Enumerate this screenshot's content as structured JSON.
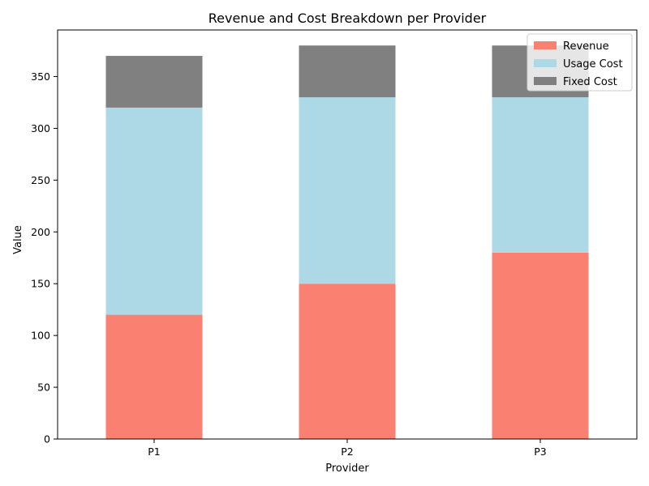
{
  "chart_data": {
    "type": "bar",
    "stacked": true,
    "title": "Revenue and Cost Breakdown per Provider",
    "xlabel": "Provider",
    "ylabel": "Value",
    "categories": [
      "P1",
      "P2",
      "P3"
    ],
    "series": [
      {
        "name": "Revenue",
        "values": [
          120,
          150,
          180
        ],
        "color": "#fa8072"
      },
      {
        "name": "Usage Cost",
        "values": [
          200,
          180,
          150
        ],
        "color": "#add8e6"
      },
      {
        "name": "Fixed Cost",
        "values": [
          50,
          50,
          50
        ],
        "color": "#808080"
      }
    ],
    "ylim": [
      0,
      395
    ],
    "yticks": [
      0,
      50,
      100,
      150,
      200,
      250,
      300,
      350
    ],
    "grid": false,
    "legend": "top-right"
  }
}
